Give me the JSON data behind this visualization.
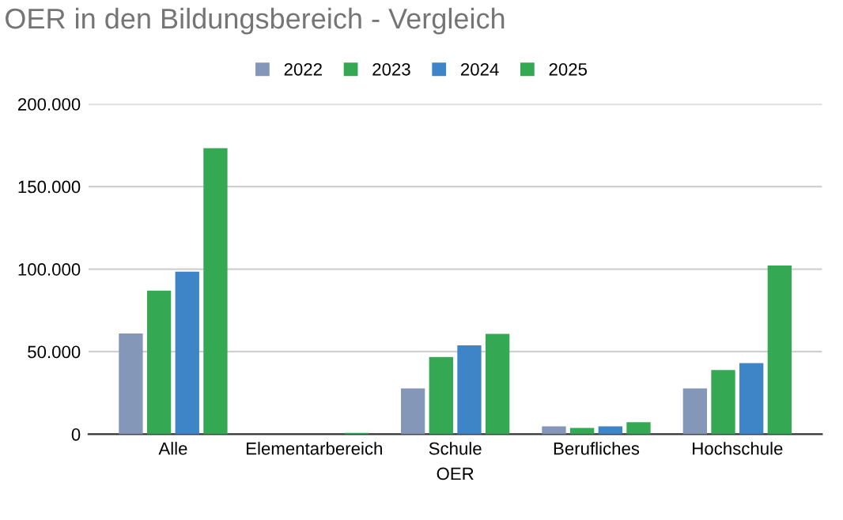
{
  "chart_data": {
    "type": "bar",
    "title": "OER in den Bildungsbereich - Vergleich",
    "xlabel": "OER",
    "categories": [
      "Alle",
      "Elementarbereich",
      "Schule",
      "Berufliches",
      "Hochschule"
    ],
    "series": [
      {
        "name": "2022",
        "color": "#8497b8",
        "values": [
          61000,
          0,
          27700,
          4800,
          27700
        ]
      },
      {
        "name": "2023",
        "color": "#34a853",
        "values": [
          87000,
          0,
          46800,
          3800,
          38900
        ]
      },
      {
        "name": "2024",
        "color": "#3d85c6",
        "values": [
          98400,
          0,
          53800,
          4800,
          43000
        ]
      },
      {
        "name": "2025",
        "color": "#34a853",
        "values": [
          173300,
          800,
          60800,
          7300,
          102200
        ]
      }
    ],
    "ylim": [
      0,
      200000
    ],
    "yticks": [
      {
        "value": 0,
        "label": "0"
      },
      {
        "value": 50000,
        "label": "50.000"
      },
      {
        "value": 100000,
        "label": "100.000"
      },
      {
        "value": 150000,
        "label": "150.000"
      },
      {
        "value": 200000,
        "label": "200.000"
      }
    ],
    "grid": "y",
    "legend": "top"
  }
}
